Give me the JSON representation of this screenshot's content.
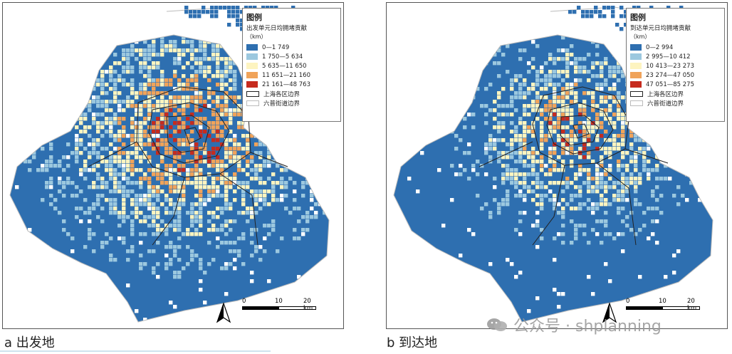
{
  "colors": {
    "c1": "#2e6fb0",
    "c2": "#9cc8df",
    "c3": "#fdf4c0",
    "c4": "#f0a35a",
    "c5": "#c62b1e",
    "district_border": "#222222",
    "street_border": "#bbbbbb"
  },
  "panels": [
    {
      "caption": "a  出发地",
      "legend": {
        "title": "图例",
        "subtitle": "出发单元日均拥堵贡献",
        "unit": "（km）",
        "classes": [
          {
            "label": "0—1  749",
            "color": "#2e6fb0"
          },
          {
            "label": "1  750—5  634",
            "color": "#9cc8df"
          },
          {
            "label": "5  635—11  650",
            "color": "#fdf4c0"
          },
          {
            "label": "11  651—21  160",
            "color": "#f0a35a"
          },
          {
            "label": "21  161—48  763",
            "color": "#c62b1e"
          }
        ],
        "district_boundary": "上海各区边界",
        "street_boundary": "六普街道边界"
      },
      "scale": {
        "ticks": [
          "0",
          "10",
          "20 km"
        ]
      },
      "north_icon": "north-arrow-icon"
    },
    {
      "caption": "b  到达地",
      "legend": {
        "title": "图例",
        "subtitle": "到达单元日均拥堵贡献",
        "unit": "（km）",
        "classes": [
          {
            "label": "0—2  994",
            "color": "#2e6fb0"
          },
          {
            "label": "2  995—10  412",
            "color": "#9cc8df"
          },
          {
            "label": "10  413—23  273",
            "color": "#fdf4c0"
          },
          {
            "label": "23  274—47  050",
            "color": "#f0a35a"
          },
          {
            "label": "47  051—85  275",
            "color": "#c62b1e"
          }
        ],
        "district_boundary": "上海各区边界",
        "street_boundary": "六普街道边界"
      },
      "scale": {
        "ticks": [
          "0",
          "10",
          "20 km"
        ]
      },
      "north_icon": "north-arrow-icon"
    }
  ],
  "watermark": "公众号 · shplanning"
}
